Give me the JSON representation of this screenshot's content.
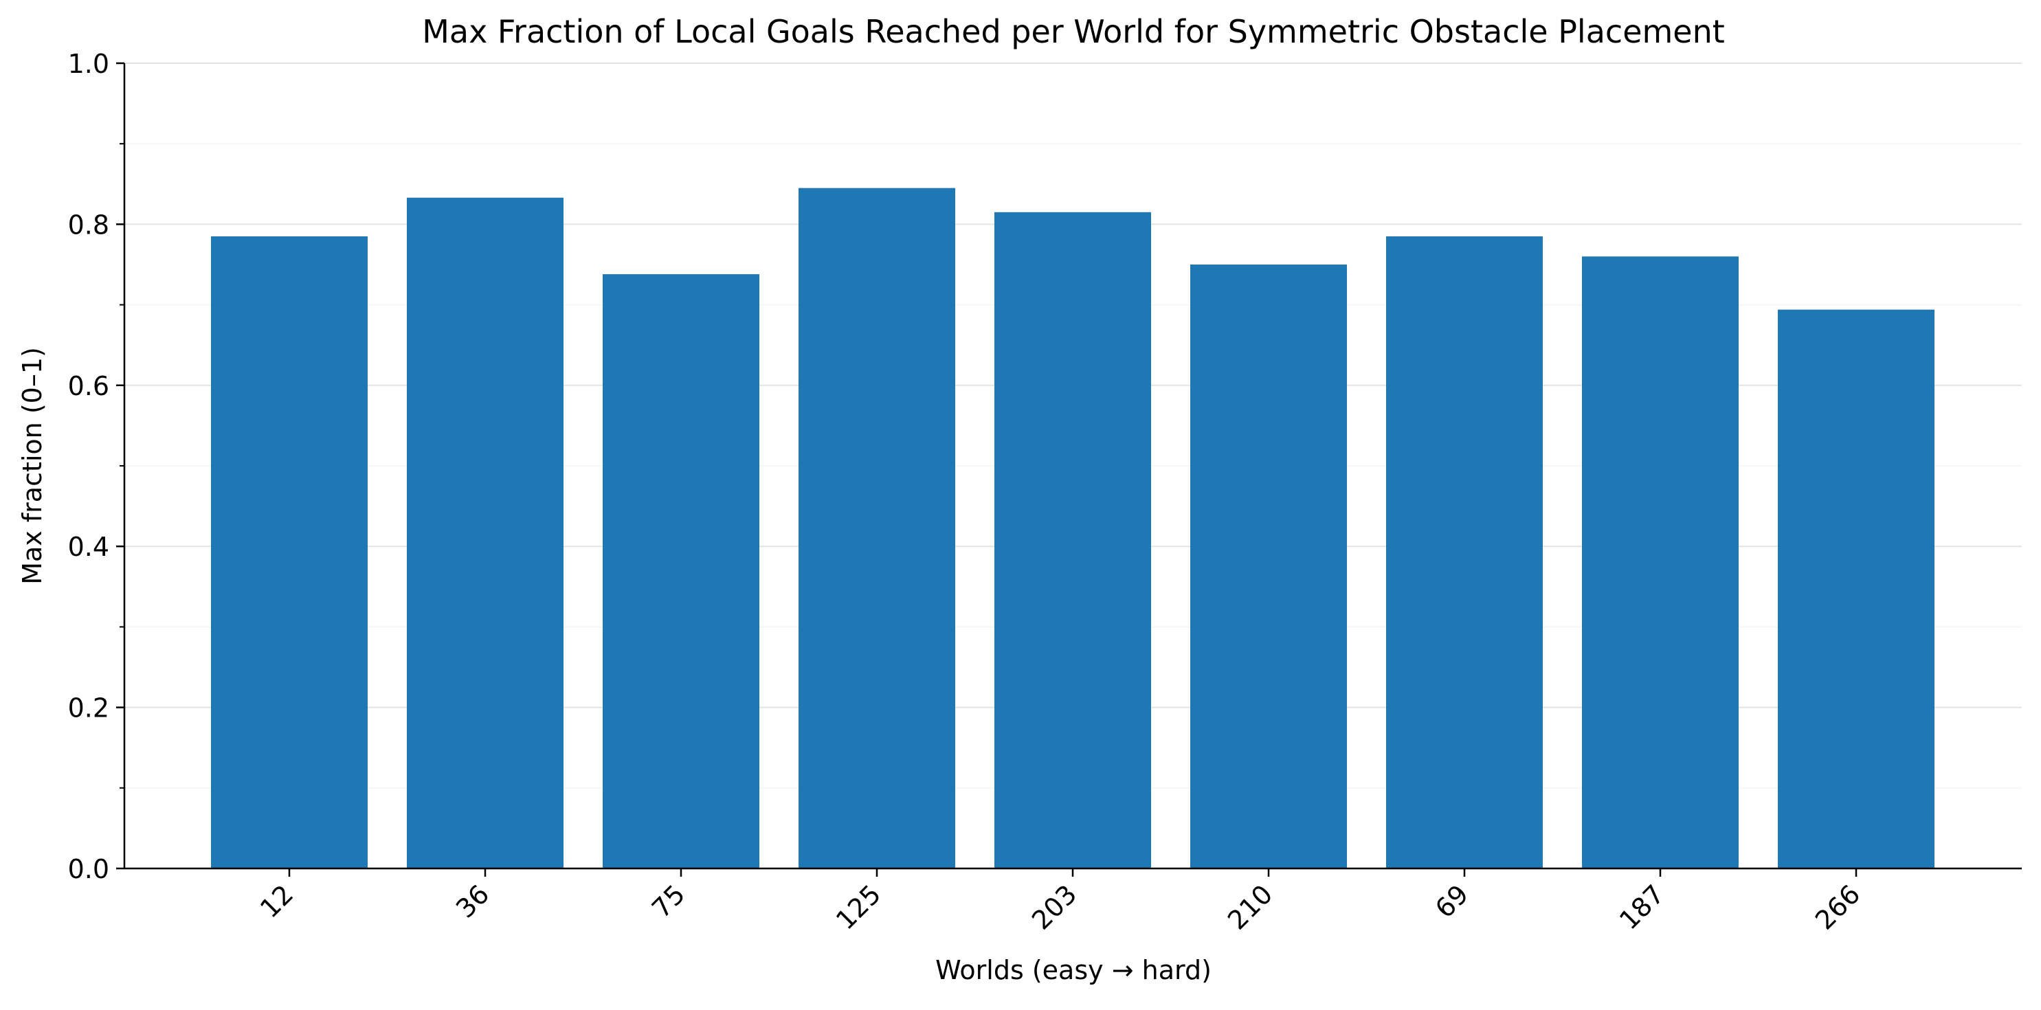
{
  "chart_data": {
    "type": "bar",
    "title": "Max Fraction of Local Goals Reached per World for Symmetric Obstacle Placement",
    "xlabel": "Worlds (easy → hard)",
    "ylabel": "Max fraction (0–1)",
    "categories": [
      "12",
      "36",
      "75",
      "125",
      "203",
      "210",
      "69",
      "187",
      "266"
    ],
    "values": [
      0.785,
      0.833,
      0.738,
      0.845,
      0.815,
      0.75,
      0.785,
      0.76,
      0.694
    ],
    "ylim": [
      0,
      1.0
    ],
    "yticks": [
      "0.0",
      "0.2",
      "0.4",
      "0.6",
      "0.8",
      "1.0"
    ],
    "grid": "y",
    "bar_color": "#1f77b4",
    "axis_color": "#000000"
  }
}
